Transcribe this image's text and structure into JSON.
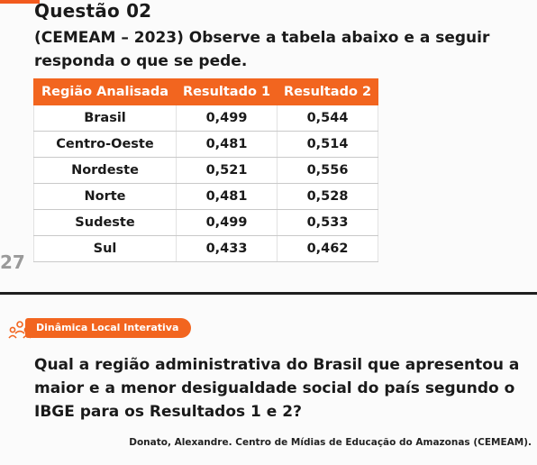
{
  "question": {
    "title": "Questão 02",
    "text": "(CEMEAM – 2023) Observe a tabela abaixo e a seguir responda o que se pede."
  },
  "table": {
    "headers": [
      "Região Analisada",
      "Resultado 1",
      "Resultado 2"
    ],
    "rows": [
      [
        "Brasil",
        "0,499",
        "0,544"
      ],
      [
        "Centro-Oeste",
        "0,481",
        "0,514"
      ],
      [
        "Nordeste",
        "0,521",
        "0,556"
      ],
      [
        "Norte",
        "0,481",
        "0,528"
      ],
      [
        "Sudeste",
        "0,499",
        "0,533"
      ],
      [
        "Sul",
        "0,433",
        "0,462"
      ]
    ]
  },
  "page_number": "27",
  "section_badge": "Dinâmica Local Interativa",
  "prompt": "Qual a região administrativa do Brasil que apresentou a maior e a menor desigualdade social do país segundo o IBGE para os Resultados 1 e 2?",
  "source": "Donato, Alexandre. Centro de Mídias de Educação do Amazonas (CEMEAM).",
  "colors": {
    "accent": "#f2651f",
    "text": "#1a1a1a"
  },
  "icons": {
    "section": "people-group-icon"
  }
}
